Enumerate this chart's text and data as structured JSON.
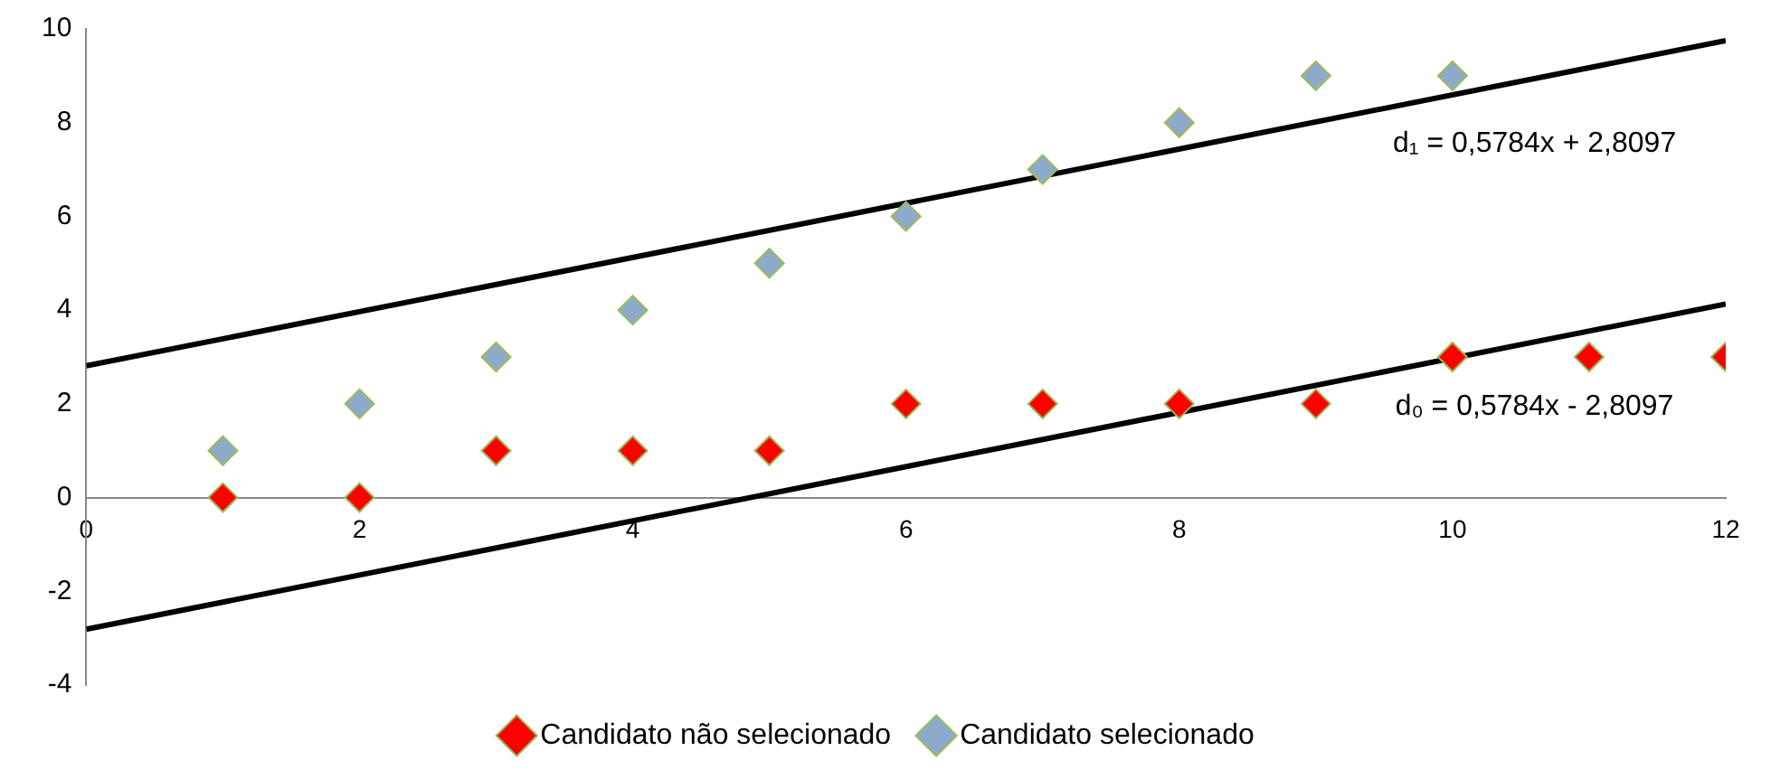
{
  "chart_data": {
    "type": "scatter",
    "xlim": [
      0,
      12
    ],
    "xticks": [
      0,
      2,
      4,
      6,
      8,
      10,
      12
    ],
    "ylim": [
      -4,
      10
    ],
    "yticks": [
      -4,
      -2,
      0,
      2,
      4,
      6,
      8,
      10
    ],
    "grid": false,
    "legend": "bottom",
    "marker": "diamond",
    "series": [
      {
        "name": "Candidato não selecionado",
        "color": "#ff0000",
        "x": [
          1,
          2,
          3,
          4,
          5,
          6,
          7,
          8,
          9,
          10,
          11,
          12
        ],
        "values": [
          0,
          0,
          1,
          1,
          1,
          2,
          2,
          2,
          2,
          3,
          3,
          3
        ]
      },
      {
        "name": "Candidato selecionado",
        "color": "#8eaacb",
        "x": [
          1,
          2,
          3,
          4,
          5,
          6,
          7,
          8,
          9,
          10
        ],
        "values": [
          1,
          2,
          3,
          4,
          5,
          6,
          7,
          8,
          9,
          9
        ]
      },
      {
        "type": "line",
        "color": "#000000",
        "marker": "none",
        "x": [
          0,
          12
        ],
        "values": [
          2.81,
          9.75
        ]
      },
      {
        "type": "line",
        "color": "#000000",
        "marker": "none",
        "x": [
          0,
          12
        ],
        "values": [
          -2.81,
          4.13
        ]
      }
    ],
    "annotations": [
      {
        "text": "d₁ = 0,5784x + 2,8097",
        "x": 10.6,
        "y": 8.94
      },
      {
        "text": "d₀ = 0,5784x - 2,8097",
        "x": 10.6,
        "y": 3.32
      }
    ]
  }
}
